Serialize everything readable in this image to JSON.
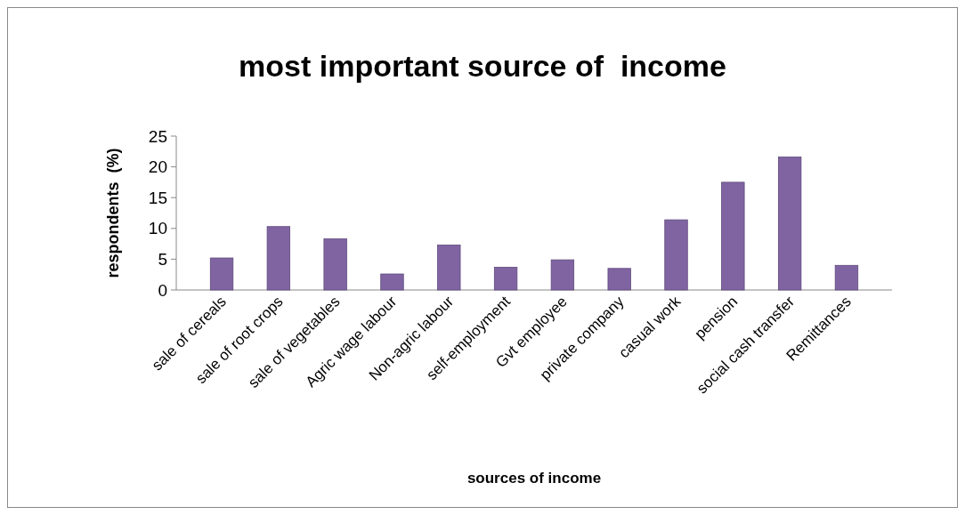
{
  "chart_data": {
    "type": "bar",
    "title": "most important source of  income",
    "xlabel": "sources of income",
    "ylabel": "respondents  (%)",
    "categories": [
      "sale of cereals",
      "sale of root crops",
      "sale of vegetables",
      "Agric wage labour",
      "Non-agric labour",
      "self-employment",
      "Gvt employee",
      "private company",
      "casual work",
      "pension",
      "social cash transfer",
      "Remittances"
    ],
    "values": [
      5.2,
      10.3,
      8.3,
      2.6,
      7.3,
      3.7,
      4.9,
      3.5,
      11.4,
      17.5,
      21.6,
      4.0
    ],
    "color": "#8064a2",
    "ylim": [
      0,
      25
    ],
    "yticks": [
      0,
      5,
      10,
      15,
      20,
      25
    ],
    "grid": false
  }
}
